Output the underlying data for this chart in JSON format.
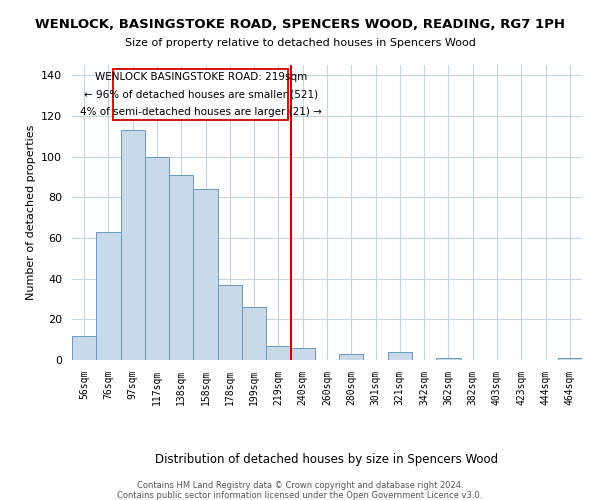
{
  "title": "WENLOCK, BASINGSTOKE ROAD, SPENCERS WOOD, READING, RG7 1PH",
  "subtitle": "Size of property relative to detached houses in Spencers Wood",
  "xlabel": "Distribution of detached houses by size in Spencers Wood",
  "ylabel": "Number of detached properties",
  "bar_labels": [
    "56sqm",
    "76sqm",
    "97sqm",
    "117sqm",
    "138sqm",
    "158sqm",
    "178sqm",
    "199sqm",
    "219sqm",
    "240sqm",
    "260sqm",
    "280sqm",
    "301sqm",
    "321sqm",
    "342sqm",
    "362sqm",
    "382sqm",
    "403sqm",
    "423sqm",
    "444sqm",
    "464sqm"
  ],
  "bar_values": [
    12,
    63,
    113,
    100,
    91,
    84,
    37,
    26,
    7,
    6,
    0,
    3,
    0,
    4,
    0,
    1,
    0,
    0,
    0,
    0,
    1
  ],
  "bar_color": "#c8d9ea",
  "bar_edge_color": "#6a9abf",
  "vline_color": "#cc0000",
  "ylim": [
    0,
    145
  ],
  "yticks": [
    0,
    20,
    40,
    60,
    80,
    100,
    120,
    140
  ],
  "annotation_title": "WENLOCK BASINGSTOKE ROAD: 219sqm",
  "annotation_line1": "← 96% of detached houses are smaller (521)",
  "annotation_line2": "4% of semi-detached houses are larger (21) →",
  "footer_line1": "Contains HM Land Registry data © Crown copyright and database right 2024.",
  "footer_line2": "Contains public sector information licensed under the Open Government Licence v3.0.",
  "background_color": "#ffffff",
  "grid_color": "#c8d4e0"
}
